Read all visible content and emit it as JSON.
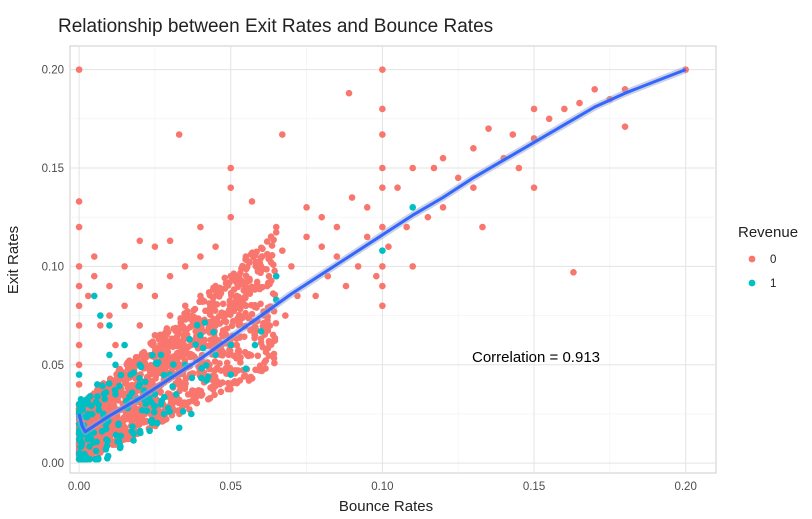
{
  "chart_data": {
    "type": "scatter",
    "title": "Relationship between Exit Rates and Bounce Rates",
    "xlabel": "Bounce Rates",
    "ylabel": "Exit Rates",
    "xlim": [
      -0.003,
      0.21
    ],
    "ylim": [
      -0.005,
      0.212
    ],
    "x_ticks": [
      0.0,
      0.05,
      0.1,
      0.15,
      0.2
    ],
    "x_tick_labels": [
      "0.00",
      "0.05",
      "0.10",
      "0.15",
      "0.20"
    ],
    "y_ticks": [
      0.0,
      0.05,
      0.1,
      0.15,
      0.2
    ],
    "y_tick_labels": [
      "0.00",
      "0.05",
      "0.10",
      "0.15",
      "0.20"
    ],
    "grid": true,
    "legend": {
      "title": "Revenue",
      "position": "right",
      "entries": [
        {
          "label": "0",
          "color": "#F8766D"
        },
        {
          "label": "1",
          "color": "#00BFC4"
        }
      ]
    },
    "annotation": {
      "text": "Correlation = 0.913",
      "x": 0.145,
      "y": 0.05
    },
    "trend_line": {
      "color": "#3366FF",
      "points": [
        [
          0.0,
          0.025
        ],
        [
          0.001,
          0.019
        ],
        [
          0.002,
          0.016
        ],
        [
          0.01,
          0.024
        ],
        [
          0.02,
          0.033
        ],
        [
          0.03,
          0.043
        ],
        [
          0.04,
          0.053
        ],
        [
          0.05,
          0.064
        ],
        [
          0.06,
          0.075
        ],
        [
          0.07,
          0.086
        ],
        [
          0.08,
          0.096
        ],
        [
          0.09,
          0.106
        ],
        [
          0.1,
          0.116
        ],
        [
          0.11,
          0.126
        ],
        [
          0.12,
          0.135
        ],
        [
          0.13,
          0.145
        ],
        [
          0.14,
          0.154
        ],
        [
          0.15,
          0.163
        ],
        [
          0.16,
          0.172
        ],
        [
          0.17,
          0.181
        ],
        [
          0.18,
          0.188
        ],
        [
          0.19,
          0.194
        ],
        [
          0.2,
          0.2
        ]
      ]
    },
    "series": [
      {
        "name": "0",
        "color": "#F8766D",
        "points": [
          [
            0.0,
            0.2
          ],
          [
            0.0,
            0.133
          ],
          [
            0.0,
            0.12
          ],
          [
            0.0,
            0.1
          ],
          [
            0.0,
            0.09
          ],
          [
            0.0,
            0.08
          ],
          [
            0.0,
            0.07
          ],
          [
            0.0,
            0.06
          ],
          [
            0.0,
            0.05
          ],
          [
            0.0,
            0.04
          ],
          [
            0.0,
            0.03
          ],
          [
            0.0,
            0.02
          ],
          [
            0.0,
            0.01
          ],
          [
            0.0,
            0.005
          ],
          [
            0.003,
            0.085
          ],
          [
            0.005,
            0.095
          ],
          [
            0.005,
            0.105
          ],
          [
            0.007,
            0.07
          ],
          [
            0.01,
            0.075
          ],
          [
            0.01,
            0.09
          ],
          [
            0.012,
            0.06
          ],
          [
            0.015,
            0.08
          ],
          [
            0.015,
            0.1
          ],
          [
            0.02,
            0.07
          ],
          [
            0.02,
            0.09
          ],
          [
            0.02,
            0.113
          ],
          [
            0.025,
            0.065
          ],
          [
            0.025,
            0.085
          ],
          [
            0.025,
            0.11
          ],
          [
            0.03,
            0.075
          ],
          [
            0.03,
            0.095
          ],
          [
            0.03,
            0.113
          ],
          [
            0.033,
            0.167
          ],
          [
            0.035,
            0.08
          ],
          [
            0.035,
            0.1
          ],
          [
            0.04,
            0.085
          ],
          [
            0.04,
            0.105
          ],
          [
            0.04,
            0.12
          ],
          [
            0.045,
            0.09
          ],
          [
            0.045,
            0.11
          ],
          [
            0.05,
            0.15
          ],
          [
            0.05,
            0.14
          ],
          [
            0.05,
            0.125
          ],
          [
            0.05,
            0.095
          ],
          [
            0.055,
            0.105
          ],
          [
            0.057,
            0.133
          ],
          [
            0.06,
            0.1
          ],
          [
            0.065,
            0.12
          ],
          [
            0.067,
            0.167
          ],
          [
            0.067,
            0.108
          ],
          [
            0.07,
            0.1
          ],
          [
            0.075,
            0.13
          ],
          [
            0.08,
            0.125
          ],
          [
            0.08,
            0.11
          ],
          [
            0.085,
            0.12
          ],
          [
            0.089,
            0.188
          ],
          [
            0.09,
            0.135
          ],
          [
            0.095,
            0.13
          ],
          [
            0.1,
            0.2
          ],
          [
            0.1,
            0.18
          ],
          [
            0.1,
            0.167
          ],
          [
            0.1,
            0.15
          ],
          [
            0.1,
            0.14
          ],
          [
            0.1,
            0.12
          ],
          [
            0.1,
            0.1
          ],
          [
            0.1,
            0.09
          ],
          [
            0.1,
            0.08
          ],
          [
            0.105,
            0.14
          ],
          [
            0.11,
            0.15
          ],
          [
            0.11,
            0.1
          ],
          [
            0.115,
            0.125
          ],
          [
            0.117,
            0.15
          ],
          [
            0.12,
            0.13
          ],
          [
            0.12,
            0.155
          ],
          [
            0.125,
            0.145
          ],
          [
            0.13,
            0.16
          ],
          [
            0.13,
            0.14
          ],
          [
            0.133,
            0.12
          ],
          [
            0.135,
            0.17
          ],
          [
            0.14,
            0.155
          ],
          [
            0.143,
            0.167
          ],
          [
            0.145,
            0.15
          ],
          [
            0.15,
            0.18
          ],
          [
            0.15,
            0.165
          ],
          [
            0.15,
            0.14
          ],
          [
            0.155,
            0.175
          ],
          [
            0.16,
            0.18
          ],
          [
            0.163,
            0.097
          ],
          [
            0.165,
            0.183
          ],
          [
            0.17,
            0.19
          ],
          [
            0.175,
            0.185
          ],
          [
            0.18,
            0.19
          ],
          [
            0.18,
            0.171
          ],
          [
            0.2,
            0.2
          ],
          [
            0.037,
            0.06
          ],
          [
            0.043,
            0.05
          ],
          [
            0.047,
            0.075
          ],
          [
            0.052,
            0.085
          ],
          [
            0.062,
            0.09
          ],
          [
            0.072,
            0.085
          ],
          [
            0.082,
            0.095
          ],
          [
            0.092,
            0.1
          ],
          [
            0.102,
            0.11
          ],
          [
            0.108,
            0.12
          ],
          [
            0.045,
            0.07
          ],
          [
            0.055,
            0.08
          ],
          [
            0.065,
            0.095
          ],
          [
            0.075,
            0.115
          ],
          [
            0.085,
            0.105
          ],
          [
            0.095,
            0.115
          ],
          [
            0.058,
            0.065
          ],
          [
            0.068,
            0.075
          ],
          [
            0.078,
            0.085
          ],
          [
            0.088,
            0.09
          ],
          [
            0.098,
            0.095
          ],
          [
            0.052,
            0.06
          ],
          [
            0.062,
            0.07
          ]
        ]
      },
      {
        "name": "1",
        "color": "#00BFC4",
        "points": [
          [
            0.0,
            0.045
          ],
          [
            0.0,
            0.03
          ],
          [
            0.0,
            0.02
          ],
          [
            0.0,
            0.012
          ],
          [
            0.0,
            0.005
          ],
          [
            0.005,
            0.085
          ],
          [
            0.007,
            0.075
          ],
          [
            0.01,
            0.07
          ],
          [
            0.01,
            0.055
          ],
          [
            0.012,
            0.05
          ],
          [
            0.015,
            0.06
          ],
          [
            0.017,
            0.045
          ],
          [
            0.02,
            0.04
          ],
          [
            0.02,
            0.05
          ],
          [
            0.025,
            0.035
          ],
          [
            0.027,
            0.055
          ],
          [
            0.03,
            0.045
          ],
          [
            0.032,
            0.035
          ],
          [
            0.035,
            0.05
          ],
          [
            0.037,
            0.025
          ],
          [
            0.04,
            0.065
          ],
          [
            0.042,
            0.042
          ],
          [
            0.045,
            0.055
          ],
          [
            0.05,
            0.06
          ],
          [
            0.05,
            0.045
          ],
          [
            0.055,
            0.048
          ],
          [
            0.058,
            0.06
          ],
          [
            0.06,
            0.067
          ],
          [
            0.065,
            0.083
          ],
          [
            0.065,
            0.095
          ],
          [
            0.1,
            0.108
          ],
          [
            0.11,
            0.13
          ],
          [
            0.003,
            0.03
          ],
          [
            0.008,
            0.025
          ],
          [
            0.013,
            0.02
          ],
          [
            0.018,
            0.015
          ],
          [
            0.022,
            0.03
          ],
          [
            0.028,
            0.025
          ],
          [
            0.033,
            0.018
          ],
          [
            0.012,
            0.035
          ],
          [
            0.006,
            0.04
          ],
          [
            0.016,
            0.028
          ],
          [
            0.024,
            0.022
          ],
          [
            0.003,
            0.015
          ],
          [
            0.009,
            0.012
          ]
        ]
      }
    ]
  }
}
